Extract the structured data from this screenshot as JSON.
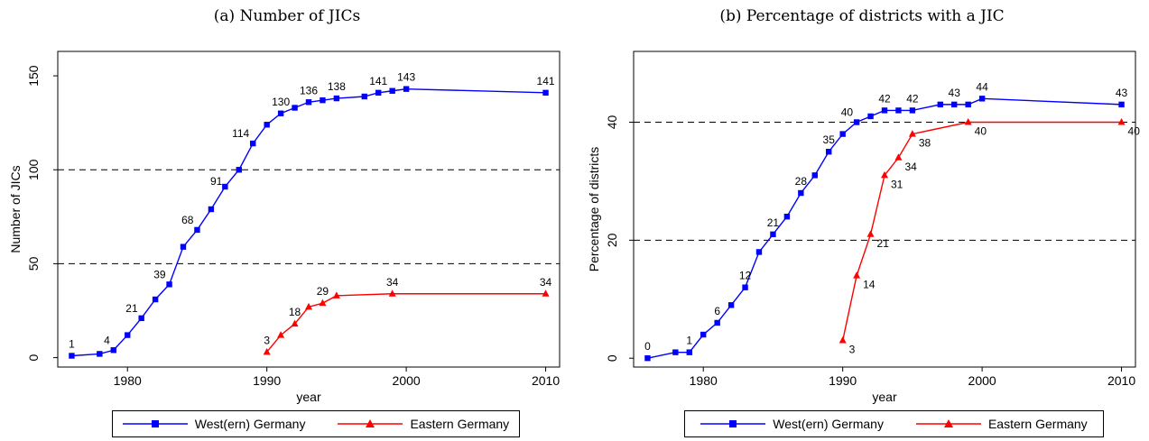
{
  "colors": {
    "west": "#0000ff",
    "east": "#ff0000"
  },
  "legend": {
    "west": "West(ern) Germany",
    "east": "Eastern Germany"
  },
  "chart_data": [
    {
      "type": "line",
      "title": "(a) Number of JICs",
      "xlabel": "year",
      "ylabel": "Number of JICs",
      "xlim": [
        1975,
        2011
      ],
      "ylim": [
        -5,
        163
      ],
      "xticks": [
        1980,
        1990,
        2000,
        2010
      ],
      "yticks": [
        0,
        50,
        100,
        150
      ],
      "hlines": [
        50,
        100
      ],
      "grid": false,
      "legend_position": "bottom",
      "series": [
        {
          "name": "West(ern) Germany",
          "marker": "square",
          "x": [
            1976,
            1978,
            1979,
            1980,
            1981,
            1982,
            1983,
            1984,
            1985,
            1986,
            1987,
            1988,
            1989,
            1990,
            1991,
            1992,
            1993,
            1994,
            1995,
            1997,
            1998,
            1999,
            2000,
            2010
          ],
          "y": [
            1,
            2,
            4,
            12,
            21,
            31,
            39,
            59,
            68,
            79,
            91,
            100,
            114,
            124,
            130,
            133,
            136,
            137,
            138,
            139,
            141,
            142,
            143,
            141
          ],
          "labels": [
            {
              "x": 1976,
              "y": 1,
              "text": "1",
              "pos": "above"
            },
            {
              "x": 1979,
              "y": 4,
              "text": "4",
              "pos": "above-left"
            },
            {
              "x": 1981,
              "y": 21,
              "text": "21",
              "pos": "above-left"
            },
            {
              "x": 1983,
              "y": 39,
              "text": "39",
              "pos": "above-left"
            },
            {
              "x": 1985,
              "y": 68,
              "text": "68",
              "pos": "above-left"
            },
            {
              "x": 1987,
              "y": 91,
              "text": "91",
              "pos": "right"
            },
            {
              "x": 1989,
              "y": 114,
              "text": "114",
              "pos": "above-left"
            },
            {
              "x": 1991,
              "y": 130,
              "text": "130",
              "pos": "above"
            },
            {
              "x": 1993,
              "y": 136,
              "text": "136",
              "pos": "above"
            },
            {
              "x": 1995,
              "y": 138,
              "text": "138",
              "pos": "above"
            },
            {
              "x": 1998,
              "y": 141,
              "text": "141",
              "pos": "above"
            },
            {
              "x": 2000,
              "y": 143,
              "text": "143",
              "pos": "above"
            },
            {
              "x": 2010,
              "y": 141,
              "text": "141",
              "pos": "above"
            }
          ]
        },
        {
          "name": "Eastern Germany",
          "marker": "triangle",
          "x": [
            1990,
            1991,
            1992,
            1993,
            1994,
            1995,
            1999,
            2010
          ],
          "y": [
            3,
            12,
            18,
            27,
            29,
            33,
            34,
            34
          ],
          "labels": [
            {
              "x": 1990,
              "y": 3,
              "text": "3",
              "pos": "above"
            },
            {
              "x": 1992,
              "y": 18,
              "text": "18",
              "pos": "above"
            },
            {
              "x": 1994,
              "y": 29,
              "text": "29",
              "pos": "above"
            },
            {
              "x": 1999,
              "y": 34,
              "text": "34",
              "pos": "above"
            },
            {
              "x": 2010,
              "y": 34,
              "text": "34",
              "pos": "above"
            }
          ]
        }
      ]
    },
    {
      "type": "line",
      "title": "(b) Percentage of districts with a JIC",
      "xlabel": "year",
      "ylabel": "Percentage of districts",
      "xlim": [
        1975,
        2011
      ],
      "ylim": [
        -1.5,
        52
      ],
      "xticks": [
        1980,
        1990,
        2000,
        2010
      ],
      "yticks": [
        0,
        20,
        40
      ],
      "hlines": [
        20,
        40
      ],
      "grid": false,
      "legend_position": "bottom",
      "series": [
        {
          "name": "West(ern) Germany",
          "marker": "square",
          "x": [
            1976,
            1978,
            1979,
            1980,
            1981,
            1982,
            1983,
            1984,
            1985,
            1986,
            1987,
            1988,
            1989,
            1990,
            1991,
            1992,
            1993,
            1994,
            1995,
            1997,
            1998,
            1999,
            2000,
            2010
          ],
          "y": [
            0,
            1,
            1,
            4,
            6,
            9,
            12,
            18,
            21,
            24,
            28,
            31,
            35,
            38,
            40,
            41,
            42,
            42,
            42,
            43,
            43,
            43,
            44,
            43
          ],
          "labels": [
            {
              "x": 1976,
              "y": 0,
              "text": "0",
              "pos": "above"
            },
            {
              "x": 1979,
              "y": 1,
              "text": "1",
              "pos": "above"
            },
            {
              "x": 1981,
              "y": 6,
              "text": "6",
              "pos": "above"
            },
            {
              "x": 1983,
              "y": 12,
              "text": "12",
              "pos": "above"
            },
            {
              "x": 1985,
              "y": 21,
              "text": "21",
              "pos": "above"
            },
            {
              "x": 1987,
              "y": 28,
              "text": "28",
              "pos": "above"
            },
            {
              "x": 1989,
              "y": 35,
              "text": "35",
              "pos": "above"
            },
            {
              "x": 1991,
              "y": 40,
              "text": "40",
              "pos": "above-left"
            },
            {
              "x": 1993,
              "y": 42,
              "text": "42",
              "pos": "above"
            },
            {
              "x": 1995,
              "y": 42,
              "text": "42",
              "pos": "above"
            },
            {
              "x": 1998,
              "y": 43,
              "text": "43",
              "pos": "above"
            },
            {
              "x": 2000,
              "y": 44,
              "text": "44",
              "pos": "above"
            },
            {
              "x": 2010,
              "y": 43,
              "text": "43",
              "pos": "above"
            }
          ]
        },
        {
          "name": "Eastern Germany",
          "marker": "triangle",
          "x": [
            1990,
            1991,
            1992,
            1993,
            1994,
            1995,
            1999,
            2010
          ],
          "y": [
            3,
            14,
            21,
            31,
            34,
            38,
            40,
            40
          ],
          "labels": [
            {
              "x": 1990,
              "y": 3,
              "text": "3",
              "pos": "below-right"
            },
            {
              "x": 1991,
              "y": 14,
              "text": "14",
              "pos": "below-right"
            },
            {
              "x": 1992,
              "y": 21,
              "text": "21",
              "pos": "below-right"
            },
            {
              "x": 1993,
              "y": 31,
              "text": "31",
              "pos": "below-right"
            },
            {
              "x": 1994,
              "y": 34,
              "text": "34",
              "pos": "below-right"
            },
            {
              "x": 1995,
              "y": 38,
              "text": "38",
              "pos": "below-right"
            },
            {
              "x": 1999,
              "y": 40,
              "text": "40",
              "pos": "below-right"
            },
            {
              "x": 2010,
              "y": 40,
              "text": "40",
              "pos": "below-right"
            }
          ]
        }
      ]
    }
  ]
}
